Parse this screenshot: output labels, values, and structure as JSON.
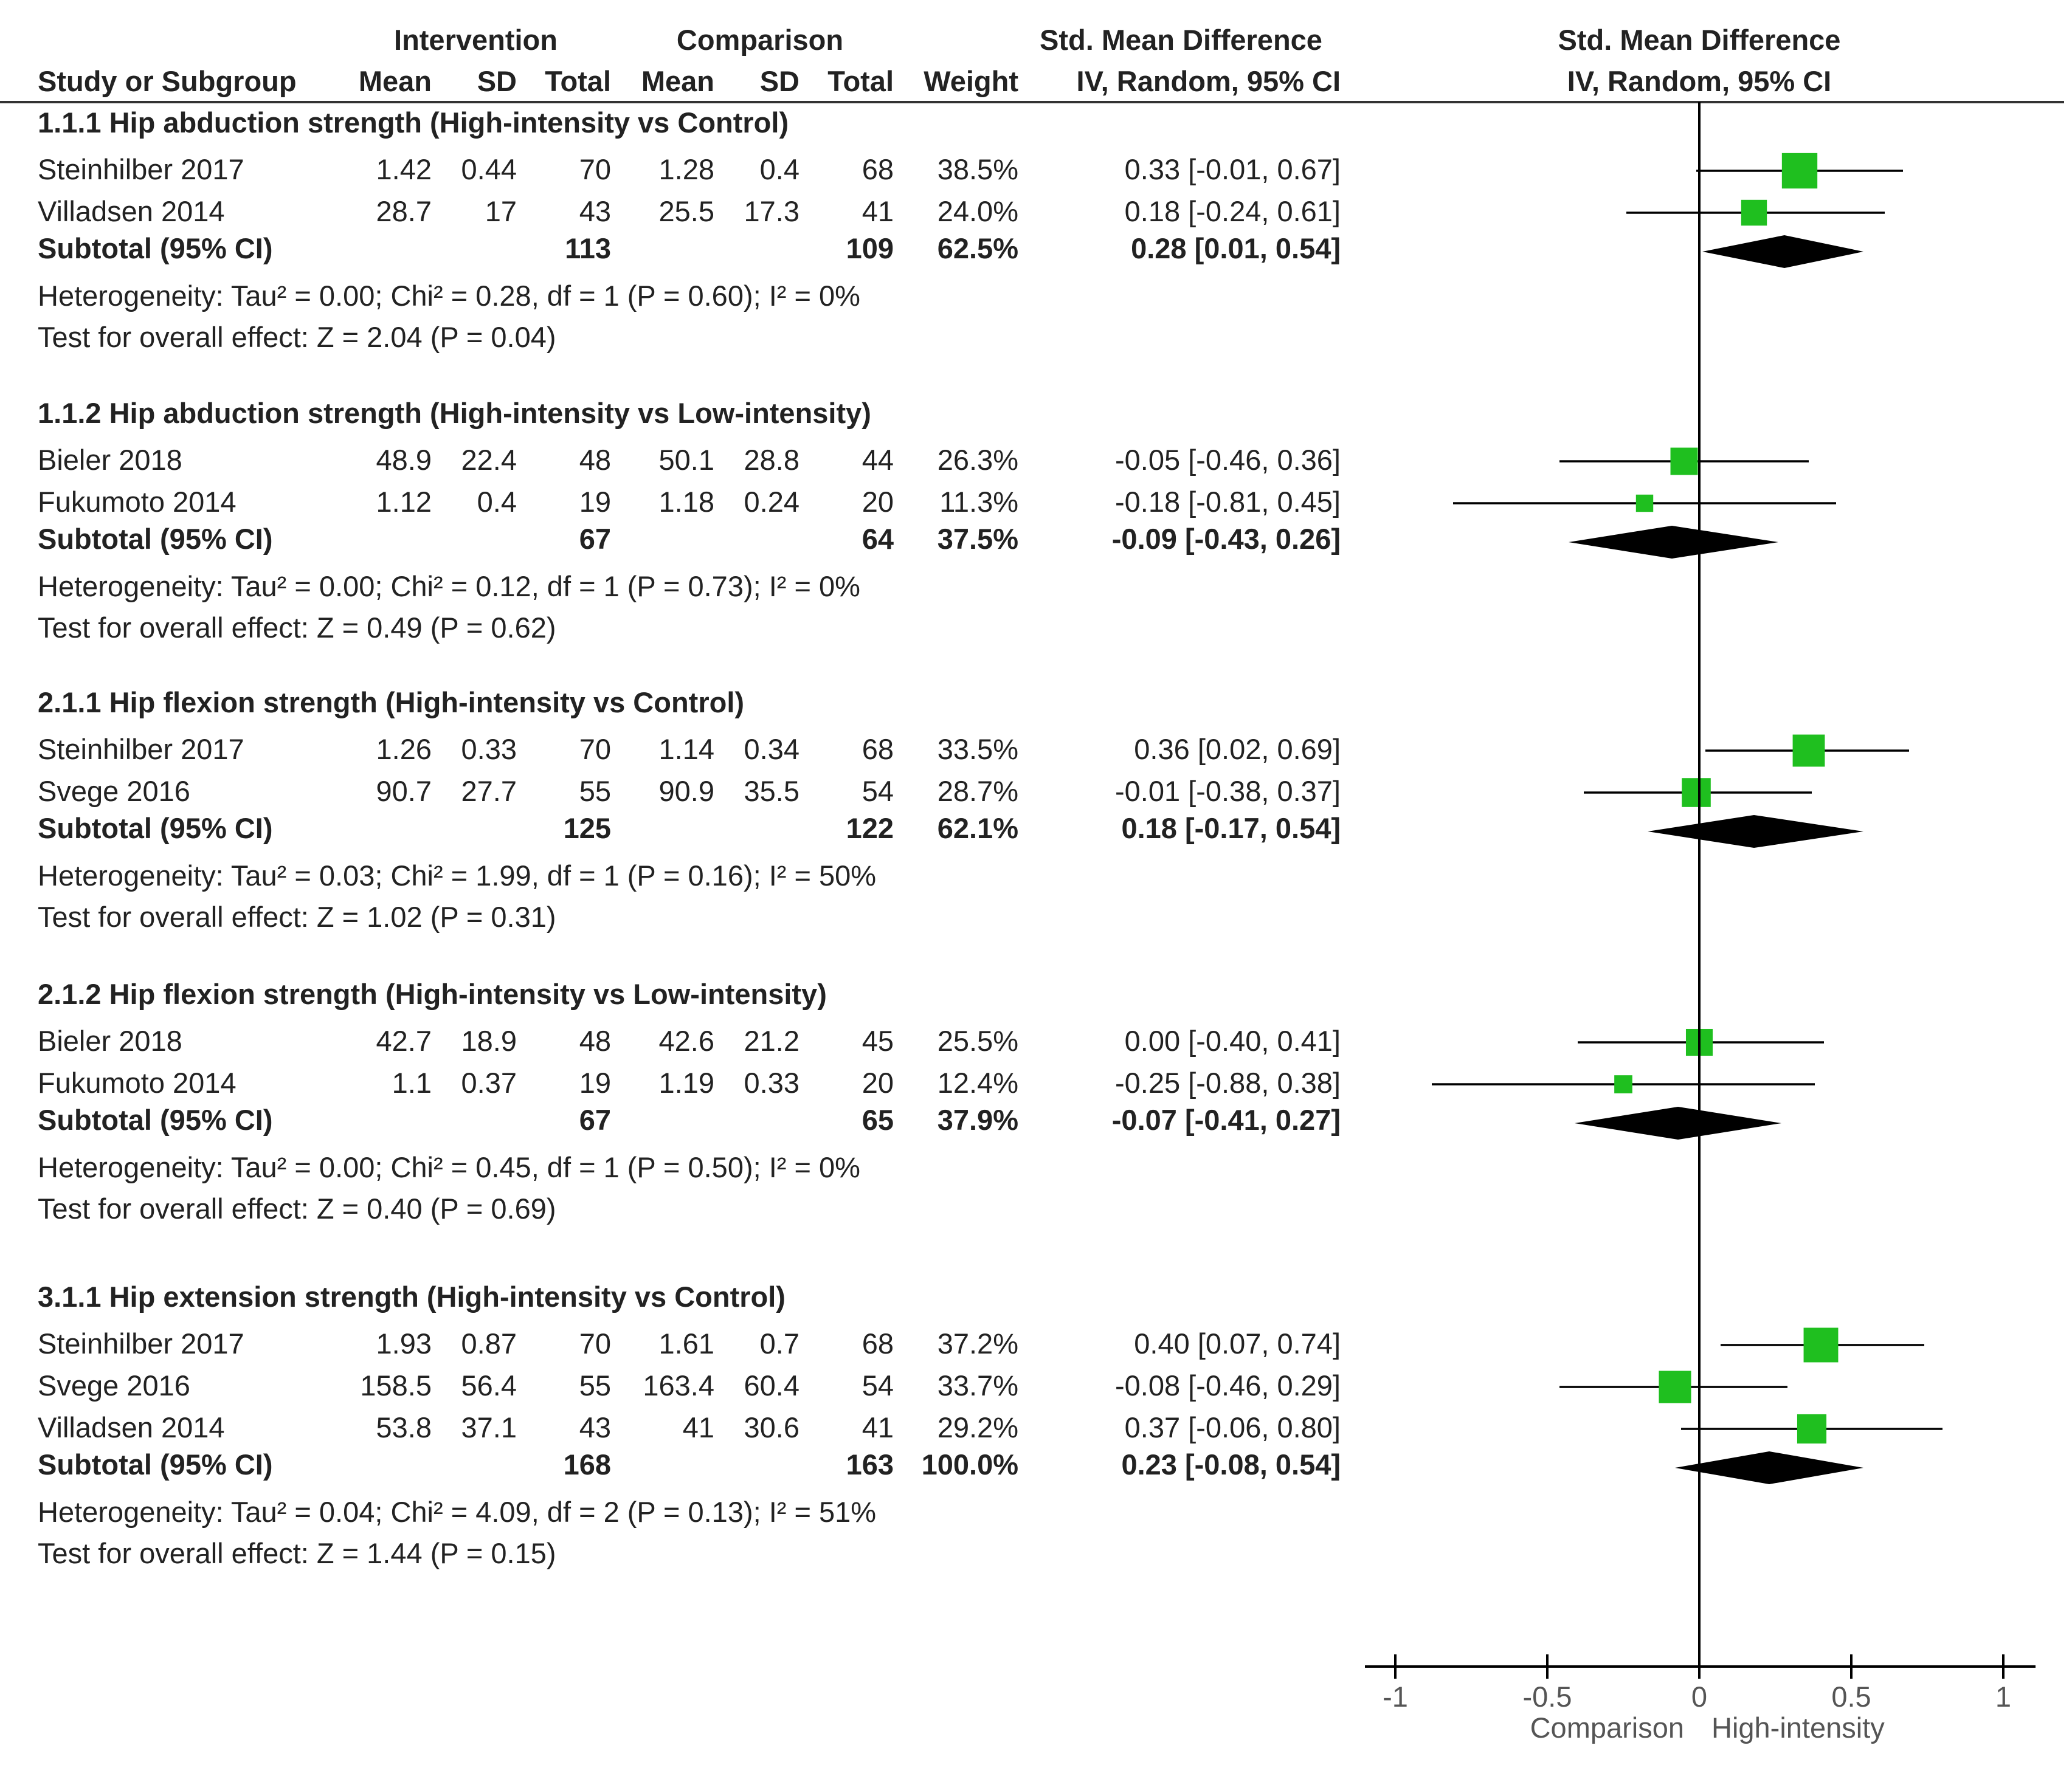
{
  "chart_data": {
    "type": "forest",
    "columns": {
      "group_intervention": "Intervention",
      "group_comparison": "Comparison",
      "group_smd_table": "Std. Mean Difference",
      "group_smd_plot": "Std. Mean Difference",
      "study": "Study or Subgroup",
      "int_mean": "Mean",
      "int_sd": "SD",
      "int_total": "Total",
      "cmp_mean": "Mean",
      "cmp_sd": "SD",
      "cmp_total": "Total",
      "weight": "Weight",
      "ci_method_table": "IV, Random, 95% CI",
      "ci_method_plot": "IV, Random, 95% CI"
    },
    "subgroups": [
      {
        "title": "1.1.1 Hip abduction strength (High-intensity vs Control)",
        "studies": [
          {
            "name": "Steinhilber 2017",
            "int_mean": "1.42",
            "int_sd": "0.44",
            "int_total": "70",
            "cmp_mean": "1.28",
            "cmp_sd": "0.4",
            "cmp_total": "68",
            "weight": "38.5%",
            "ci_text": "0.33 [-0.01, 0.67]",
            "est": 0.33,
            "lo": -0.01,
            "hi": 0.67,
            "w": 38.5
          },
          {
            "name": "Villadsen 2014",
            "int_mean": "28.7",
            "int_sd": "17",
            "int_total": "43",
            "cmp_mean": "25.5",
            "cmp_sd": "17.3",
            "cmp_total": "41",
            "weight": "24.0%",
            "ci_text": "0.18 [-0.24, 0.61]",
            "est": 0.18,
            "lo": -0.24,
            "hi": 0.61,
            "w": 24.0
          }
        ],
        "subtotal": {
          "label": "Subtotal (95% CI)",
          "int_total": "113",
          "cmp_total": "109",
          "weight": "62.5%",
          "ci_text": "0.28 [0.01, 0.54]",
          "est": 0.28,
          "lo": 0.01,
          "hi": 0.54
        },
        "heterogeneity": "Heterogeneity: Tau² = 0.00; Chi² = 0.28, df = 1 (P = 0.60); I² = 0%",
        "overall": "Test for overall effect: Z = 2.04 (P = 0.04)"
      },
      {
        "title": "1.1.2 Hip abduction strength (High-intensity vs Low-intensity)",
        "studies": [
          {
            "name": "Bieler 2018",
            "int_mean": "48.9",
            "int_sd": "22.4",
            "int_total": "48",
            "cmp_mean": "50.1",
            "cmp_sd": "28.8",
            "cmp_total": "44",
            "weight": "26.3%",
            "ci_text": "-0.05 [-0.46, 0.36]",
            "est": -0.05,
            "lo": -0.46,
            "hi": 0.36,
            "w": 26.3
          },
          {
            "name": "Fukumoto 2014",
            "int_mean": "1.12",
            "int_sd": "0.4",
            "int_total": "19",
            "cmp_mean": "1.18",
            "cmp_sd": "0.24",
            "cmp_total": "20",
            "weight": "11.3%",
            "ci_text": "-0.18 [-0.81, 0.45]",
            "est": -0.18,
            "lo": -0.81,
            "hi": 0.45,
            "w": 11.3
          }
        ],
        "subtotal": {
          "label": "Subtotal (95% CI)",
          "int_total": "67",
          "cmp_total": "64",
          "weight": "37.5%",
          "ci_text": "-0.09 [-0.43, 0.26]",
          "est": -0.09,
          "lo": -0.43,
          "hi": 0.26
        },
        "heterogeneity": "Heterogeneity: Tau² = 0.00; Chi² = 0.12, df = 1 (P = 0.73); I² = 0%",
        "overall": "Test for overall effect: Z = 0.49 (P = 0.62)"
      },
      {
        "title": "2.1.1 Hip flexion strength (High-intensity vs Control)",
        "studies": [
          {
            "name": "Steinhilber 2017",
            "int_mean": "1.26",
            "int_sd": "0.33",
            "int_total": "70",
            "cmp_mean": "1.14",
            "cmp_sd": "0.34",
            "cmp_total": "68",
            "weight": "33.5%",
            "ci_text": "0.36 [0.02, 0.69]",
            "est": 0.36,
            "lo": 0.02,
            "hi": 0.69,
            "w": 33.5
          },
          {
            "name": "Svege 2016",
            "int_mean": "90.7",
            "int_sd": "27.7",
            "int_total": "55",
            "cmp_mean": "90.9",
            "cmp_sd": "35.5",
            "cmp_total": "54",
            "weight": "28.7%",
            "ci_text": "-0.01 [-0.38, 0.37]",
            "est": -0.01,
            "lo": -0.38,
            "hi": 0.37,
            "w": 28.7
          }
        ],
        "subtotal": {
          "label": "Subtotal (95% CI)",
          "int_total": "125",
          "cmp_total": "122",
          "weight": "62.1%",
          "ci_text": "0.18 [-0.17, 0.54]",
          "est": 0.18,
          "lo": -0.17,
          "hi": 0.54
        },
        "heterogeneity": "Heterogeneity: Tau² = 0.03; Chi² = 1.99, df = 1 (P = 0.16); I² = 50%",
        "overall": "Test for overall effect: Z = 1.02 (P = 0.31)"
      },
      {
        "title": "2.1.2 Hip flexion strength (High-intensity vs Low-intensity)",
        "studies": [
          {
            "name": "Bieler 2018",
            "int_mean": "42.7",
            "int_sd": "18.9",
            "int_total": "48",
            "cmp_mean": "42.6",
            "cmp_sd": "21.2",
            "cmp_total": "45",
            "weight": "25.5%",
            "ci_text": "0.00 [-0.40, 0.41]",
            "est": 0.0,
            "lo": -0.4,
            "hi": 0.41,
            "w": 25.5
          },
          {
            "name": "Fukumoto 2014",
            "int_mean": "1.1",
            "int_sd": "0.37",
            "int_total": "19",
            "cmp_mean": "1.19",
            "cmp_sd": "0.33",
            "cmp_total": "20",
            "weight": "12.4%",
            "ci_text": "-0.25 [-0.88, 0.38]",
            "est": -0.25,
            "lo": -0.88,
            "hi": 0.38,
            "w": 12.4
          }
        ],
        "subtotal": {
          "label": "Subtotal (95% CI)",
          "int_total": "67",
          "cmp_total": "65",
          "weight": "37.9%",
          "ci_text": "-0.07 [-0.41, 0.27]",
          "est": -0.07,
          "lo": -0.41,
          "hi": 0.27
        },
        "heterogeneity": "Heterogeneity: Tau² = 0.00; Chi² = 0.45, df = 1 (P = 0.50); I² = 0%",
        "overall": "Test for overall effect: Z = 0.40 (P = 0.69)"
      },
      {
        "title": "3.1.1 Hip extension strength (High-intensity vs Control)",
        "studies": [
          {
            "name": "Steinhilber 2017",
            "int_mean": "1.93",
            "int_sd": "0.87",
            "int_total": "70",
            "cmp_mean": "1.61",
            "cmp_sd": "0.7",
            "cmp_total": "68",
            "weight": "37.2%",
            "ci_text": "0.40 [0.07, 0.74]",
            "est": 0.4,
            "lo": 0.07,
            "hi": 0.74,
            "w": 37.2
          },
          {
            "name": "Svege 2016",
            "int_mean": "158.5",
            "int_sd": "56.4",
            "int_total": "55",
            "cmp_mean": "163.4",
            "cmp_sd": "60.4",
            "cmp_total": "54",
            "weight": "33.7%",
            "ci_text": "-0.08 [-0.46, 0.29]",
            "est": -0.08,
            "lo": -0.46,
            "hi": 0.29,
            "w": 33.7
          },
          {
            "name": "Villadsen 2014",
            "int_mean": "53.8",
            "int_sd": "37.1",
            "int_total": "43",
            "cmp_mean": "41",
            "cmp_sd": "30.6",
            "cmp_total": "41",
            "weight": "29.2%",
            "ci_text": "0.37 [-0.06, 0.80]",
            "est": 0.37,
            "lo": -0.06,
            "hi": 0.8,
            "w": 29.2
          }
        ],
        "subtotal": {
          "label": "Subtotal (95% CI)",
          "int_total": "168",
          "cmp_total": "163",
          "weight": "100.0%",
          "ci_text": "0.23 [-0.08, 0.54]",
          "est": 0.23,
          "lo": -0.08,
          "hi": 0.54
        },
        "heterogeneity": "Heterogeneity: Tau² = 0.04; Chi² = 4.09, df = 2 (P = 0.13); I² = 51%",
        "overall": "Test for overall effect: Z = 1.44 (P = 0.15)"
      }
    ],
    "x_axis": {
      "range": [
        -1,
        1
      ],
      "ticks": [
        -1,
        -0.5,
        0,
        0.5,
        1
      ],
      "tick_labels": [
        "-1",
        "-0.5",
        "0",
        "0.5",
        "1"
      ],
      "label_left": "Comparison",
      "label_right": "High-intensity"
    },
    "colors": {
      "square": "#1fbf1f",
      "diamond": "#000000",
      "line": "#000000",
      "text": "#222222"
    }
  }
}
